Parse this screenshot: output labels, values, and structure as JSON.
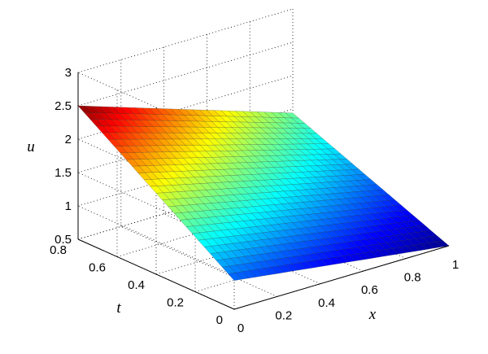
{
  "chart_data": {
    "type": "surface",
    "title": "",
    "xlabel": "x",
    "ylabel": "t",
    "zlabel": "u",
    "xlim": [
      0,
      1
    ],
    "ylim": [
      0,
      0.8
    ],
    "zlim": [
      0.5,
      3
    ],
    "x_ticks": [
      "0",
      "0.2",
      "0.4",
      "0.6",
      "0.8",
      "1"
    ],
    "y_ticks": [
      "0",
      "0.2",
      "0.4",
      "0.6",
      "0.8"
    ],
    "z_ticks": [
      "0.5",
      "1",
      "1.5",
      "2",
      "2.5",
      "3"
    ],
    "grid": true,
    "colormap": "jet",
    "surface": {
      "x_range": [
        0,
        1
      ],
      "t_range": [
        0,
        0.8
      ],
      "corner_values": [
        {
          "x": 0,
          "t": 0,
          "u": 0.93
        },
        {
          "x": 1,
          "t": 0,
          "u": 0.5
        },
        {
          "x": 0,
          "t": 0.8,
          "u": 2.5
        },
        {
          "x": 1,
          "t": 0.8,
          "u": 1.44
        }
      ]
    }
  }
}
